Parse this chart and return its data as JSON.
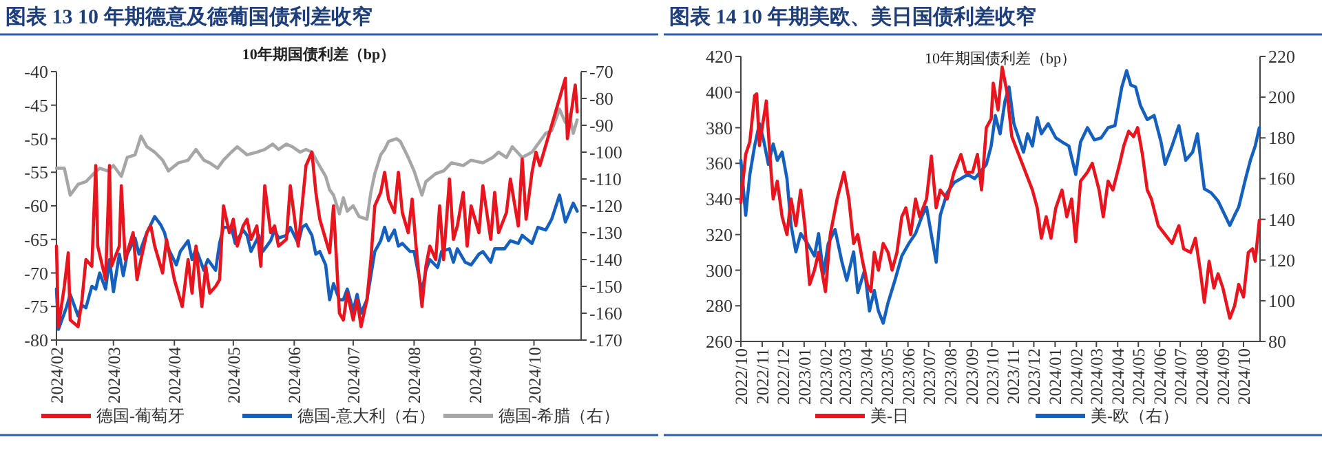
{
  "chart_data": [
    {
      "type": "line",
      "title": "图表 13  10 年期德意及德葡国债利差收窄",
      "subtitle": "10年期国债利差（bp）",
      "legend": "bottom",
      "xlim": [
        "2024-02-01",
        "2024-10-25"
      ],
      "xticks": [
        {
          "value": "2024-02-01",
          "label": "2024/02"
        },
        {
          "value": "2024-03-01",
          "label": "2024/03"
        },
        {
          "value": "2024-04-01",
          "label": "2024/04"
        },
        {
          "value": "2024-05-01",
          "label": "2024/05"
        },
        {
          "value": "2024-06-01",
          "label": "2024/06"
        },
        {
          "value": "2024-07-01",
          "label": "2024/07"
        },
        {
          "value": "2024-08-01",
          "label": "2024/08"
        },
        {
          "value": "2024-09-01",
          "label": "2024/09"
        },
        {
          "value": "2024-10-01",
          "label": "2024/10"
        }
      ],
      "ylim": [
        -80,
        -40
      ],
      "yticks": [
        -80,
        -75,
        -70,
        -65,
        -60,
        -55,
        -50,
        -45,
        -40
      ],
      "y2lim": [
        -170,
        -70
      ],
      "y2ticks": [
        -170,
        -160,
        -150,
        -140,
        -130,
        -120,
        -110,
        -100,
        -90,
        -80,
        -70
      ],
      "series": [
        {
          "name": "德国-葡萄牙",
          "color": "#e8141e",
          "x": [
            "2024-02-01",
            "2024-02-02",
            "2024-02-05",
            "2024-02-07",
            "2024-02-08",
            "2024-02-12",
            "2024-02-14",
            "2024-02-16",
            "2024-02-19",
            "2024-02-21",
            "2024-02-22",
            "2024-02-26",
            "2024-02-28",
            "2024-02-29",
            "2024-03-04",
            "2024-03-05",
            "2024-03-07",
            "2024-03-11",
            "2024-03-13",
            "2024-03-15",
            "2024-03-18",
            "2024-03-20",
            "2024-03-22",
            "2024-03-26",
            "2024-03-28",
            "2024-04-01",
            "2024-04-03",
            "2024-04-05",
            "2024-04-08",
            "2024-04-10",
            "2024-04-12",
            "2024-04-15",
            "2024-04-17",
            "2024-04-19",
            "2024-04-22",
            "2024-04-24",
            "2024-04-26",
            "2024-04-29",
            "2024-05-01",
            "2024-05-03",
            "2024-05-06",
            "2024-05-08",
            "2024-05-10",
            "2024-05-13",
            "2024-05-15",
            "2024-05-17",
            "2024-05-20",
            "2024-05-22",
            "2024-05-24",
            "2024-05-28",
            "2024-05-30",
            "2024-06-03",
            "2024-06-05",
            "2024-06-07",
            "2024-06-10",
            "2024-06-12",
            "2024-06-14",
            "2024-06-17",
            "2024-06-19",
            "2024-06-21",
            "2024-06-24",
            "2024-06-26",
            "2024-06-28",
            "2024-07-01",
            "2024-07-03",
            "2024-07-05",
            "2024-07-08",
            "2024-07-10",
            "2024-07-12",
            "2024-07-15",
            "2024-07-17",
            "2024-07-19",
            "2024-07-22",
            "2024-07-24",
            "2024-07-26",
            "2024-07-29",
            "2024-07-31",
            "2024-08-02",
            "2024-08-05",
            "2024-08-07",
            "2024-08-09",
            "2024-08-12",
            "2024-08-14",
            "2024-08-16",
            "2024-08-19",
            "2024-08-21",
            "2024-08-23",
            "2024-08-26",
            "2024-08-28",
            "2024-08-30",
            "2024-09-03",
            "2024-09-05",
            "2024-09-09",
            "2024-09-11",
            "2024-09-13",
            "2024-09-17",
            "2024-09-19",
            "2024-09-23",
            "2024-09-25",
            "2024-09-27",
            "2024-09-30",
            "2024-10-02",
            "2024-10-04",
            "2024-10-08",
            "2024-10-10",
            "2024-10-14",
            "2024-10-17",
            "2024-10-18",
            "2024-10-21",
            "2024-10-22",
            "2024-10-23"
          ],
          "values": [
            -66,
            -78,
            -72,
            -67,
            -77,
            -78,
            -74,
            -68,
            -69,
            -54,
            -66,
            -71,
            -54,
            -69,
            -66,
            -57,
            -68,
            -64,
            -71,
            -68,
            -64,
            -63,
            -66,
            -70,
            -65,
            -71,
            -73,
            -75,
            -68,
            -73,
            -66,
            -75,
            -69,
            -73,
            -72,
            -71,
            -60,
            -64,
            -62,
            -66,
            -63,
            -62,
            -65,
            -63,
            -69,
            -57,
            -64,
            -63,
            -66,
            -65,
            -57,
            -66,
            -60,
            -54,
            -52,
            -58,
            -62,
            -65,
            -67,
            -60,
            -76,
            -77,
            -73,
            -77,
            -74,
            -78,
            -74,
            -68,
            -60,
            -58,
            -55,
            -59,
            -61,
            -55,
            -61,
            -64,
            -59,
            -66,
            -75,
            -69,
            -66,
            -68,
            -60,
            -68,
            -56,
            -65,
            -63,
            -58,
            -66,
            -60,
            -64,
            -57,
            -65,
            -58,
            -64,
            -61,
            -56,
            -63,
            -53,
            -62,
            -55,
            -52,
            -54,
            -50,
            -48,
            -44,
            -41,
            -50,
            -44,
            -42,
            -46
          ]
        },
        {
          "name": "德国-意大利（右）",
          "color": "#1560bd",
          "axis": "y2",
          "x": [
            "2024-02-01",
            "2024-02-02",
            "2024-02-06",
            "2024-02-08",
            "2024-02-12",
            "2024-02-14",
            "2024-02-16",
            "2024-02-19",
            "2024-02-21",
            "2024-02-23",
            "2024-02-26",
            "2024-02-28",
            "2024-03-01",
            "2024-03-04",
            "2024-03-06",
            "2024-03-08",
            "2024-03-12",
            "2024-03-14",
            "2024-03-18",
            "2024-03-20",
            "2024-03-22",
            "2024-03-25",
            "2024-03-27",
            "2024-03-29",
            "2024-04-02",
            "2024-04-04",
            "2024-04-08",
            "2024-04-10",
            "2024-04-12",
            "2024-04-16",
            "2024-04-18",
            "2024-04-22",
            "2024-04-24",
            "2024-04-26",
            "2024-04-30",
            "2024-05-02",
            "2024-05-06",
            "2024-05-08",
            "2024-05-10",
            "2024-05-14",
            "2024-05-16",
            "2024-05-20",
            "2024-05-22",
            "2024-05-24",
            "2024-05-28",
            "2024-05-30",
            "2024-06-03",
            "2024-06-05",
            "2024-06-07",
            "2024-06-10",
            "2024-06-12",
            "2024-06-14",
            "2024-06-17",
            "2024-06-19",
            "2024-06-21",
            "2024-06-24",
            "2024-06-26",
            "2024-06-28",
            "2024-07-01",
            "2024-07-03",
            "2024-07-05",
            "2024-07-08",
            "2024-07-10",
            "2024-07-12",
            "2024-07-15",
            "2024-07-17",
            "2024-07-19",
            "2024-07-22",
            "2024-07-24",
            "2024-07-26",
            "2024-07-30",
            "2024-08-01",
            "2024-08-05",
            "2024-08-07",
            "2024-08-09",
            "2024-08-13",
            "2024-08-15",
            "2024-08-19",
            "2024-08-21",
            "2024-08-23",
            "2024-08-27",
            "2024-08-30",
            "2024-09-03",
            "2024-09-05",
            "2024-09-09",
            "2024-09-11",
            "2024-09-16",
            "2024-09-19",
            "2024-09-23",
            "2024-09-25",
            "2024-09-30",
            "2024-10-03",
            "2024-10-07",
            "2024-10-10",
            "2024-10-14",
            "2024-10-17",
            "2024-10-21",
            "2024-10-23"
          ],
          "values": [
            -151,
            -166,
            -158,
            -153,
            -161,
            -157,
            -158,
            -150,
            -151,
            -145,
            -151,
            -140,
            -152,
            -138,
            -146,
            -138,
            -132,
            -138,
            -130,
            -127,
            -124,
            -127,
            -130,
            -136,
            -142,
            -137,
            -133,
            -140,
            -136,
            -144,
            -140,
            -144,
            -134,
            -128,
            -128,
            -134,
            -129,
            -131,
            -137,
            -131,
            -137,
            -133,
            -129,
            -132,
            -131,
            -128,
            -134,
            -128,
            -127,
            -131,
            -138,
            -137,
            -142,
            -155,
            -149,
            -155,
            -155,
            -151,
            -159,
            -153,
            -160,
            -155,
            -146,
            -137,
            -133,
            -128,
            -133,
            -129,
            -135,
            -134,
            -137,
            -137,
            -152,
            -144,
            -140,
            -143,
            -137,
            -136,
            -141,
            -136,
            -141,
            -142,
            -138,
            -137,
            -141,
            -136,
            -136,
            -133,
            -134,
            -131,
            -134,
            -128,
            -129,
            -125,
            -116,
            -126,
            -119,
            -122
          ]
        },
        {
          "name": "德国-希腊（右）",
          "color": "#a6a6a6",
          "axis": "y2",
          "x": [
            "2024-02-01",
            "2024-02-05",
            "2024-02-08",
            "2024-02-12",
            "2024-02-16",
            "2024-02-20",
            "2024-02-23",
            "2024-02-27",
            "2024-03-01",
            "2024-03-05",
            "2024-03-08",
            "2024-03-12",
            "2024-03-15",
            "2024-03-18",
            "2024-03-22",
            "2024-03-26",
            "2024-03-29",
            "2024-04-03",
            "2024-04-08",
            "2024-04-12",
            "2024-04-16",
            "2024-04-19",
            "2024-04-23",
            "2024-04-26",
            "2024-04-30",
            "2024-05-03",
            "2024-05-08",
            "2024-05-13",
            "2024-05-17",
            "2024-05-21",
            "2024-05-24",
            "2024-05-28",
            "2024-05-31",
            "2024-06-04",
            "2024-06-07",
            "2024-06-10",
            "2024-06-13",
            "2024-06-17",
            "2024-06-19",
            "2024-06-21",
            "2024-06-24",
            "2024-06-26",
            "2024-06-28",
            "2024-07-01",
            "2024-07-04",
            "2024-07-08",
            "2024-07-10",
            "2024-07-12",
            "2024-07-15",
            "2024-07-17",
            "2024-07-19",
            "2024-07-23",
            "2024-07-25",
            "2024-07-29",
            "2024-08-01",
            "2024-08-05",
            "2024-08-07",
            "2024-08-12",
            "2024-08-16",
            "2024-08-20",
            "2024-08-26",
            "2024-08-30",
            "2024-09-05",
            "2024-09-10",
            "2024-09-13",
            "2024-09-17",
            "2024-09-20",
            "2024-09-25",
            "2024-09-30",
            "2024-10-03",
            "2024-10-07",
            "2024-10-10",
            "2024-10-14",
            "2024-10-17",
            "2024-10-19",
            "2024-10-21",
            "2024-10-23"
          ],
          "values": [
            -106,
            -106,
            -116,
            -112,
            -111,
            -108,
            -106,
            -107,
            -105,
            -109,
            -102,
            -101,
            -94,
            -98,
            -100,
            -103,
            -107,
            -104,
            -103,
            -99,
            -103,
            -104,
            -106,
            -103,
            -100,
            -98,
            -101,
            -100,
            -99,
            -97,
            -99,
            -97,
            -98,
            -100,
            -99,
            -100,
            -104,
            -109,
            -114,
            -116,
            -123,
            -117,
            -122,
            -120,
            -124,
            -125,
            -115,
            -108,
            -101,
            -99,
            -96,
            -95,
            -96,
            -102,
            -107,
            -116,
            -111,
            -108,
            -107,
            -104,
            -105,
            -103,
            -104,
            -102,
            -100,
            -102,
            -98,
            -102,
            -100,
            -97,
            -93,
            -92,
            -84,
            -89,
            -86,
            -93,
            -88
          ]
        }
      ]
    },
    {
      "type": "line",
      "title": "图表 14  10 年期美欧、美日国债利差收窄",
      "subtitle": "10年期国债利差（bp）",
      "legend": "bottom",
      "xlim": [
        "2022-10-01",
        "2024-10-25"
      ],
      "xticks": [
        {
          "value": "2022-10-01",
          "label": "2022/10"
        },
        {
          "value": "2022-11-01",
          "label": "2022/11"
        },
        {
          "value": "2022-12-01",
          "label": "2022/12"
        },
        {
          "value": "2023-01-01",
          "label": "2023/01"
        },
        {
          "value": "2023-02-01",
          "label": "2023/02"
        },
        {
          "value": "2023-03-01",
          "label": "2023/03"
        },
        {
          "value": "2023-04-01",
          "label": "2023/04"
        },
        {
          "value": "2023-05-01",
          "label": "2023/05"
        },
        {
          "value": "2023-06-01",
          "label": "2023/06"
        },
        {
          "value": "2023-07-01",
          "label": "2023/07"
        },
        {
          "value": "2023-08-01",
          "label": "2023/08"
        },
        {
          "value": "2023-09-01",
          "label": "2023/09"
        },
        {
          "value": "2023-10-01",
          "label": "2023/10"
        },
        {
          "value": "2023-11-01",
          "label": "2023/11"
        },
        {
          "value": "2023-12-01",
          "label": "2023/12"
        },
        {
          "value": "2024-01-01",
          "label": "2024/01"
        },
        {
          "value": "2024-02-01",
          "label": "2024/02"
        },
        {
          "value": "2024-03-01",
          "label": "2024/03"
        },
        {
          "value": "2024-04-01",
          "label": "2024/04"
        },
        {
          "value": "2024-05-01",
          "label": "2024/05"
        },
        {
          "value": "2024-06-01",
          "label": "2024/06"
        },
        {
          "value": "2024-07-01",
          "label": "2024/07"
        },
        {
          "value": "2024-08-01",
          "label": "2024/08"
        },
        {
          "value": "2024-09-01",
          "label": "2024/09"
        },
        {
          "value": "2024-10-01",
          "label": "2024/10"
        }
      ],
      "ylim": [
        260,
        420
      ],
      "yticks": [
        260,
        280,
        300,
        320,
        340,
        360,
        380,
        400,
        420
      ],
      "y2lim": [
        80,
        220
      ],
      "y2ticks": [
        80,
        100,
        120,
        140,
        160,
        180,
        200,
        220
      ],
      "series": [
        {
          "name": "美-日",
          "color": "#e8141e",
          "x": [
            "2022-10-01",
            "2022-10-08",
            "2022-10-14",
            "2022-10-21",
            "2022-10-24",
            "2022-10-28",
            "2022-11-07",
            "2022-11-13",
            "2022-11-17",
            "2022-11-23",
            "2022-11-30",
            "2022-12-07",
            "2022-12-13",
            "2022-12-20",
            "2022-12-27",
            "2023-01-02",
            "2023-01-09",
            "2023-01-16",
            "2023-01-22",
            "2023-02-01",
            "2023-02-08",
            "2023-02-18",
            "2023-02-28",
            "2023-03-07",
            "2023-03-14",
            "2023-03-20",
            "2023-03-27",
            "2023-04-03",
            "2023-04-08",
            "2023-04-13",
            "2023-04-19",
            "2023-04-26",
            "2023-05-03",
            "2023-05-09",
            "2023-05-16",
            "2023-05-23",
            "2023-05-29",
            "2023-06-05",
            "2023-06-12",
            "2023-06-18",
            "2023-06-28",
            "2023-07-05",
            "2023-07-12",
            "2023-07-18",
            "2023-07-28",
            "2023-08-07",
            "2023-08-17",
            "2023-08-24",
            "2023-09-03",
            "2023-09-10",
            "2023-09-16",
            "2023-09-23",
            "2023-09-30",
            "2023-10-03",
            "2023-10-10",
            "2023-10-16",
            "2023-10-23",
            "2023-10-30",
            "2023-11-09",
            "2023-11-19",
            "2023-11-29",
            "2023-12-06",
            "2023-12-12",
            "2023-12-19",
            "2023-12-26",
            "2024-01-02",
            "2024-01-11",
            "2024-01-18",
            "2024-01-25",
            "2024-01-31",
            "2024-02-07",
            "2024-02-17",
            "2024-02-24",
            "2024-03-05",
            "2024-03-11",
            "2024-03-18",
            "2024-03-25",
            "2024-04-04",
            "2024-04-10",
            "2024-04-17",
            "2024-04-24",
            "2024-04-30",
            "2024-05-07",
            "2024-05-14",
            "2024-05-20",
            "2024-05-30",
            "2024-06-09",
            "2024-06-19",
            "2024-06-29",
            "2024-07-06",
            "2024-07-16",
            "2024-07-23",
            "2024-07-30",
            "2024-08-05",
            "2024-08-12",
            "2024-08-19",
            "2024-08-25",
            "2024-09-01",
            "2024-09-11",
            "2024-09-18",
            "2024-09-24",
            "2024-10-01",
            "2024-10-08",
            "2024-10-14",
            "2024-10-18",
            "2024-10-24"
          ],
          "values": [
            338,
            365,
            372,
            398,
            399,
            370,
            395,
            360,
            340,
            350,
            330,
            320,
            340,
            325,
            345,
            325,
            292,
            300,
            310,
            288,
            320,
            340,
            355,
            340,
            315,
            320,
            305,
            292,
            288,
            310,
            300,
            315,
            310,
            300,
            310,
            330,
            335,
            320,
            340,
            330,
            340,
            364,
            335,
            345,
            340,
            355,
            365,
            355,
            355,
            365,
            345,
            380,
            385,
            405,
            390,
            414,
            400,
            375,
            365,
            355,
            345,
            335,
            318,
            330,
            318,
            335,
            345,
            330,
            340,
            316,
            350,
            355,
            360,
            345,
            330,
            350,
            345,
            360,
            370,
            378,
            375,
            380,
            365,
            345,
            340,
            325,
            320,
            315,
            325,
            312,
            310,
            318,
            300,
            282,
            305,
            290,
            298,
            290,
            273,
            280,
            292,
            285,
            310,
            312,
            305,
            328
          ]
        },
        {
          "name": "美-欧（右）",
          "color": "#1560bd",
          "axis": "y2",
          "x": [
            "2022-10-01",
            "2022-10-08",
            "2022-10-14",
            "2022-10-21",
            "2022-10-28",
            "2022-11-03",
            "2022-11-10",
            "2022-11-17",
            "2022-11-23",
            "2022-11-30",
            "2022-12-07",
            "2022-12-13",
            "2022-12-20",
            "2022-12-27",
            "2023-01-06",
            "2023-01-16",
            "2023-01-22",
            "2023-01-29",
            "2023-02-05",
            "2023-02-15",
            "2023-02-25",
            "2023-03-04",
            "2023-03-14",
            "2023-03-20",
            "2023-03-30",
            "2023-04-06",
            "2023-04-13",
            "2023-04-19",
            "2023-04-26",
            "2023-05-03",
            "2023-05-13",
            "2023-05-23",
            "2023-06-02",
            "2023-06-12",
            "2023-06-22",
            "2023-06-28",
            "2023-07-12",
            "2023-07-18",
            "2023-07-28",
            "2023-08-07",
            "2023-08-17",
            "2023-08-27",
            "2023-09-06",
            "2023-09-16",
            "2023-09-23",
            "2023-09-30",
            "2023-10-06",
            "2023-10-13",
            "2023-10-20",
            "2023-10-26",
            "2023-11-02",
            "2023-11-09",
            "2023-11-16",
            "2023-11-22",
            "2023-11-29",
            "2023-12-06",
            "2023-12-12",
            "2023-12-22",
            "2024-01-02",
            "2024-01-11",
            "2024-01-21",
            "2024-01-31",
            "2024-02-07",
            "2024-02-17",
            "2024-02-27",
            "2024-03-08",
            "2024-03-18",
            "2024-03-28",
            "2024-04-07",
            "2024-04-14",
            "2024-04-20",
            "2024-04-27",
            "2024-05-04",
            "2024-05-14",
            "2024-05-24",
            "2024-06-03",
            "2024-06-09",
            "2024-06-19",
            "2024-06-29",
            "2024-07-09",
            "2024-07-19",
            "2024-07-26",
            "2024-08-05",
            "2024-08-15",
            "2024-08-25",
            "2024-09-04",
            "2024-09-11",
            "2024-09-18",
            "2024-09-24",
            "2024-10-04",
            "2024-10-11",
            "2024-10-18",
            "2024-10-24"
          ],
          "values": [
            169,
            142,
            162,
            176,
            187,
            179,
            167,
            177,
            169,
            173,
            160,
            137,
            124,
            133,
            128,
            122,
            133,
            113,
            128,
            135,
            119,
            110,
            124,
            104,
            115,
            95,
            105,
            95,
            89,
            99,
            110,
            122,
            128,
            133,
            142,
            146,
            119,
            142,
            153,
            158,
            160,
            162,
            160,
            164,
            167,
            176,
            191,
            182,
            198,
            205,
            187,
            180,
            173,
            182,
            176,
            190,
            182,
            187,
            180,
            178,
            176,
            162,
            178,
            185,
            179,
            180,
            185,
            186,
            205,
            213,
            206,
            205,
            196,
            189,
            191,
            178,
            167,
            176,
            186,
            169,
            173,
            182,
            155,
            153,
            149,
            142,
            137,
            142,
            146,
            160,
            169,
            176,
            185
          ]
        }
      ]
    }
  ]
}
